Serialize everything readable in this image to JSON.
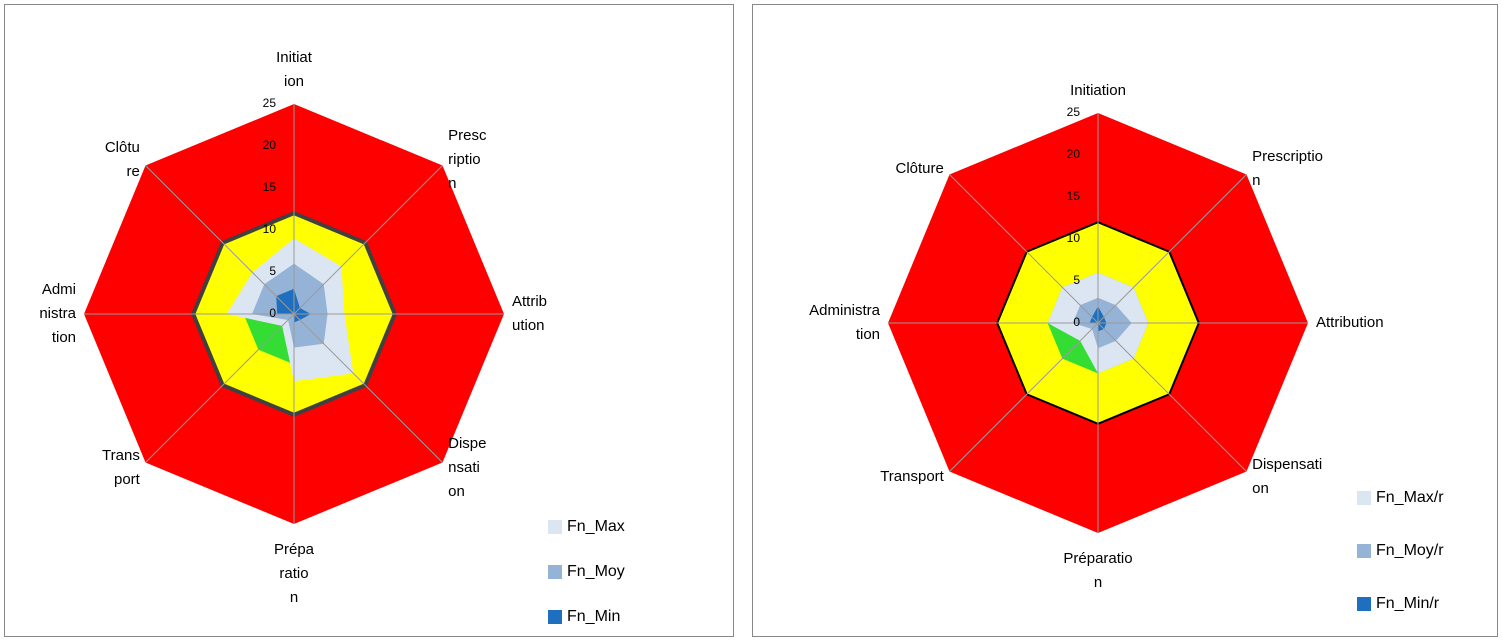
{
  "chart_data": [
    {
      "type": "radar",
      "categories": [
        "Initiat\nion",
        "Presc\nriptio\nn",
        "Attrib\nution",
        "Dispe\nnsati\non",
        "Prépa\nratio\nn",
        "Trans\nport",
        "Admi\nnistra\ntion",
        "Clôtu\nre"
      ],
      "rlim": [
        0,
        25
      ],
      "rticks": [
        0,
        5,
        10,
        15,
        20,
        25
      ],
      "grid": true,
      "series": [
        {
          "color": "#ff0000",
          "values": [
            25,
            25,
            25,
            25,
            25,
            25,
            25,
            25
          ]
        },
        {
          "color": "#ffff00",
          "outline": "#404040",
          "values": [
            12,
            12,
            12,
            12,
            12,
            12,
            12,
            12
          ]
        },
        {
          "color": "#33dd33",
          "values": [
            6,
            6,
            6,
            6,
            6,
            6,
            6,
            6
          ]
        },
        {
          "name": "Fn_Max",
          "color": "#dce6f2",
          "values": [
            9,
            8,
            6,
            10,
            8,
            2,
            8,
            7
          ]
        },
        {
          "name": "Fn_Moy",
          "color": "#95b3d7",
          "values": [
            6,
            5,
            4,
            5,
            4,
            1,
            5,
            5
          ]
        },
        {
          "name": "Fn_Min",
          "color": "#1f6fc0",
          "values": [
            3,
            1,
            2,
            1,
            1,
            0,
            2,
            3
          ]
        }
      ]
    },
    {
      "type": "radar",
      "categories": [
        "Initiation",
        "Prescriptio\nn",
        "Attribution",
        "Dispensati\non",
        "Préparatio\nn",
        "Transport",
        "Administra\ntion",
        "Clôture"
      ],
      "rlim": [
        0,
        25
      ],
      "rticks": [
        0,
        5,
        10,
        15,
        20,
        25
      ],
      "grid": true,
      "series": [
        {
          "color": "#ff0000",
          "values": [
            25,
            25,
            25,
            25,
            25,
            25,
            25,
            25
          ]
        },
        {
          "color": "#ffff00",
          "outline": "#000000",
          "values": [
            12,
            12,
            12,
            12,
            12,
            12,
            12,
            12
          ]
        },
        {
          "color": "#33dd33",
          "values": [
            6,
            6,
            6,
            6,
            6,
            6,
            6,
            6
          ]
        },
        {
          "name": "Fn_Max/r",
          "color": "#dce6f2",
          "values": [
            6,
            6,
            6,
            6,
            6,
            3,
            6,
            6
          ]
        },
        {
          "name": "Fn_Moy/r",
          "color": "#95b3d7",
          "values": [
            3,
            3,
            4,
            3,
            3,
            1,
            3,
            3
          ]
        },
        {
          "name": "Fn_Min/r",
          "color": "#1f6fc0",
          "values": [
            2,
            1,
            1,
            1,
            1,
            0,
            1,
            1
          ]
        }
      ]
    }
  ]
}
